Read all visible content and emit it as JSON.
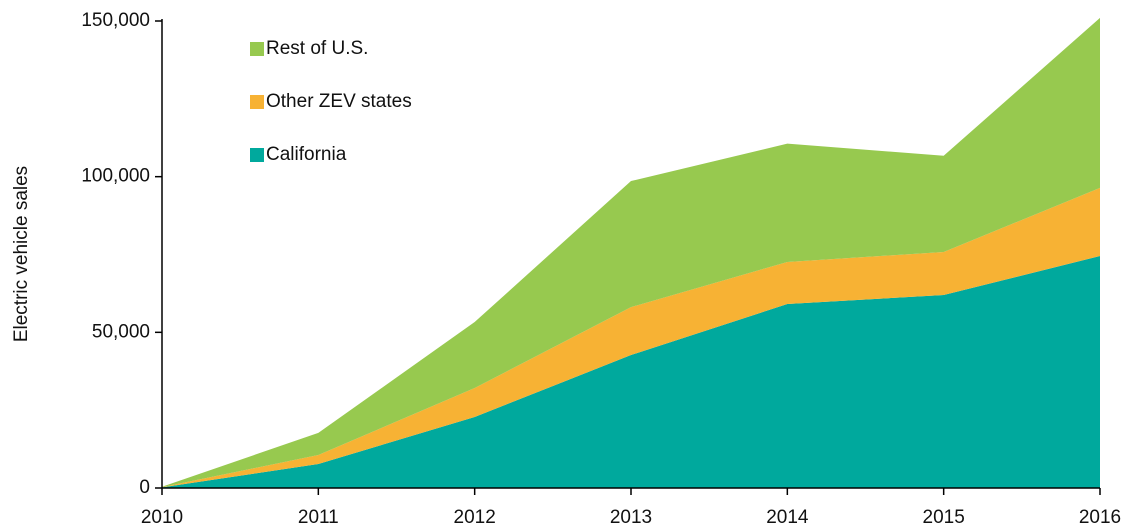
{
  "chart_data": {
    "type": "stacked_area",
    "y_label": "Electric vehicle sales",
    "x": [
      2010,
      2011,
      2012,
      2013,
      2014,
      2015,
      2016
    ],
    "xlim": [
      2010,
      2016
    ],
    "xticks": [
      2010,
      2011,
      2012,
      2013,
      2014,
      2015,
      2016
    ],
    "ylim": [
      0,
      150000
    ],
    "yticks": [
      0,
      {
        "value": 50000,
        "label": "50,000"
      },
      {
        "value": 100000,
        "label": "100,000"
      },
      {
        "value": 150000,
        "label": "150,000"
      }
    ],
    "legend": "top-left",
    "series": [
      {
        "name": "California",
        "color": "#00a99d",
        "values": [
          200,
          7700,
          22800,
          42700,
          59100,
          62000,
          74500
        ]
      },
      {
        "name": "Other ZEV states",
        "color": "#f7b234",
        "values": [
          100,
          2900,
          9300,
          15400,
          13500,
          13800,
          21900
        ]
      },
      {
        "name": "Rest of U.S.",
        "color": "#97c94f",
        "values": [
          100,
          7100,
          21200,
          40500,
          38000,
          30900,
          54600
        ]
      }
    ]
  }
}
